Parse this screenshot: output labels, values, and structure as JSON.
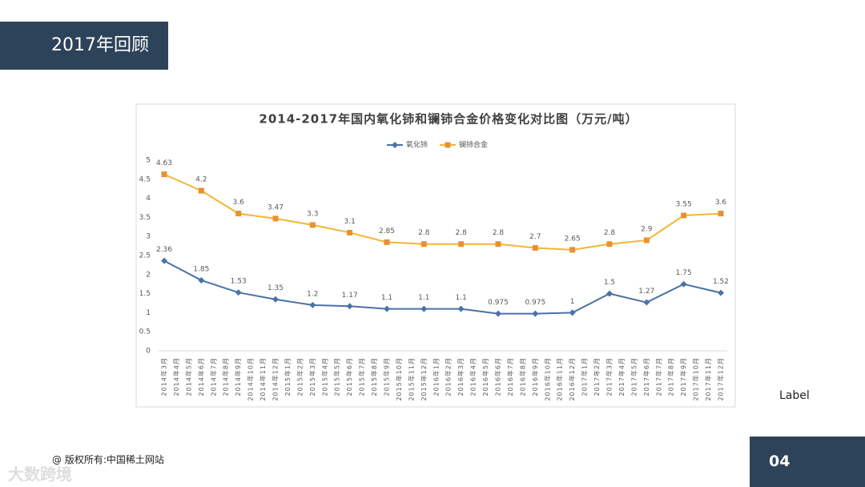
{
  "slide": {
    "title": "2017年回顾",
    "label": "Label",
    "copyright": "@ 版权所有:中国稀土网站",
    "watermark": "大数跨境",
    "page_number": "04"
  },
  "chart_data": {
    "type": "line",
    "title": "2014-2017年国内氧化铈和镧铈合金价格变化对比图（万元/吨）",
    "categories": [
      "2014年3月",
      "2014年4月",
      "2014年5月",
      "2014年6月",
      "2014年7月",
      "2014年8月",
      "2014年9月",
      "2014年10月",
      "2014年11月",
      "2014年12月",
      "2015年1月",
      "2015年2月",
      "2015年3月",
      "2015年4月",
      "2015年5月",
      "2015年6月",
      "2015年7月",
      "2015年8月",
      "2015年9月",
      "2015年10月",
      "2015年11月",
      "2015年12月",
      "2016年1月",
      "2016年2月",
      "2016年3月",
      "2016年4月",
      "2016年5月",
      "2016年6月",
      "2016年7月",
      "2016年8月",
      "2016年9月",
      "2016年10月",
      "2016年11月",
      "2016年12月",
      "2017年1月",
      "2017年2月",
      "2017年3月",
      "2017年4月",
      "2017年5月",
      "2017年6月",
      "2017年7月",
      "2017年8月",
      "2017年9月",
      "2017年10月",
      "2017年11月",
      "2017年12月"
    ],
    "x": [
      "2014年3月",
      "2014年6月",
      "2014年9月",
      "2014年12月",
      "2015年3月",
      "2015年6月",
      "2015年9月",
      "2015年12月",
      "2016年3月",
      "2016年6月",
      "2016年9月",
      "2016年12月",
      "2017年3月",
      "2017年6月",
      "2017年9月",
      "2017年12月"
    ],
    "series": [
      {
        "name": "氧化铈",
        "color": "#4a72a8",
        "marker": "diamond",
        "values": [
          2.36,
          1.85,
          1.53,
          1.35,
          1.2,
          1.17,
          1.1,
          1.1,
          1.1,
          0.975,
          0.975,
          1,
          1.5,
          1.27,
          1.75,
          1.52
        ]
      },
      {
        "name": "镧铈合金",
        "color": "#f2b632",
        "marker_color": "#e8912e",
        "marker": "square",
        "values": [
          4.63,
          4.2,
          3.6,
          3.47,
          3.3,
          3.1,
          2.85,
          2.8,
          2.8,
          2.8,
          2.7,
          2.65,
          2.8,
          2.9,
          3.55,
          3.6
        ]
      }
    ],
    "ylim": [
      0,
      5
    ],
    "yticks": [
      0,
      0.5,
      1,
      1.5,
      2,
      2.5,
      3,
      3.5,
      4,
      4.5,
      5
    ],
    "grid": false,
    "legend": "top"
  }
}
